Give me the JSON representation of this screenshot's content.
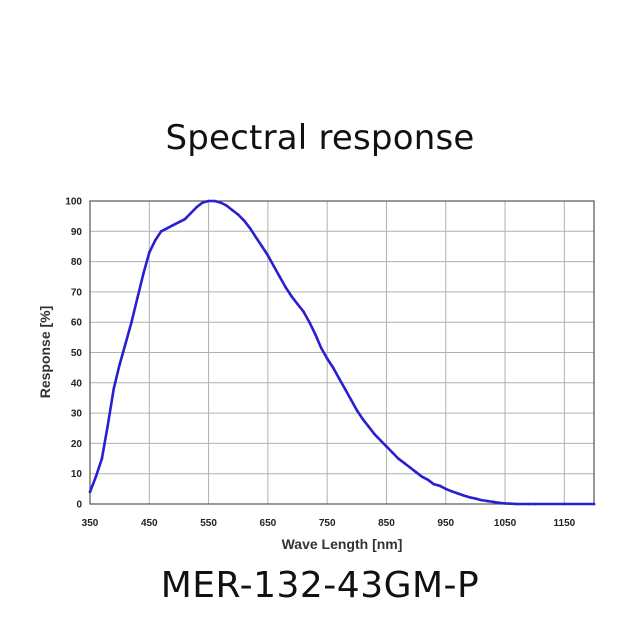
{
  "title": "Spectral response",
  "model": "MER-132-43GM-P",
  "colors": {
    "line": "#2a1fd0",
    "grid": "#b0b0b0",
    "axis": "#555555"
  },
  "chart_data": {
    "type": "line",
    "xlabel": "Wave Length [nm]",
    "ylabel": "Response [%]",
    "xlim": [
      350,
      1200
    ],
    "ylim": [
      0,
      100
    ],
    "x_ticks": [
      350,
      450,
      550,
      650,
      750,
      850,
      950,
      1050,
      1150
    ],
    "y_ticks": [
      0,
      10,
      20,
      30,
      40,
      50,
      60,
      70,
      80,
      90,
      100
    ],
    "grid": true,
    "series": [
      {
        "x": [
          350,
          360,
          370,
          380,
          390,
          400,
          410,
          420,
          430,
          440,
          450,
          460,
          470,
          480,
          490,
          500,
          510,
          520,
          530,
          540,
          550,
          560,
          570,
          580,
          590,
          600,
          610,
          620,
          630,
          640,
          650,
          660,
          670,
          680,
          690,
          700,
          710,
          720,
          730,
          740,
          750,
          760,
          770,
          780,
          790,
          800,
          810,
          820,
          830,
          840,
          850,
          860,
          870,
          880,
          890,
          900,
          910,
          920,
          930,
          940,
          950,
          960,
          970,
          980,
          990,
          1000,
          1010,
          1020,
          1030,
          1040,
          1050,
          1060,
          1070,
          1080,
          1090,
          1100,
          1150,
          1200
        ],
        "values": [
          4,
          9,
          15,
          26,
          38,
          46,
          53,
          60,
          68,
          76,
          83,
          87,
          90,
          91,
          92,
          93,
          94,
          96,
          98,
          99.5,
          100,
          100,
          99.5,
          98.5,
          97,
          95.5,
          93.5,
          91,
          88,
          85,
          82,
          78.5,
          75,
          71.5,
          68.5,
          66,
          63.5,
          60,
          56,
          51.5,
          48,
          45,
          41.5,
          38,
          34.5,
          31,
          28,
          25.5,
          23,
          21,
          19,
          17,
          15,
          13.5,
          12,
          10.5,
          9,
          8,
          6.5,
          6,
          5,
          4.2,
          3.5,
          2.8,
          2.2,
          1.8,
          1.3,
          1,
          0.7,
          0.4,
          0.2,
          0.1,
          0,
          0,
          0,
          0,
          0,
          0
        ]
      }
    ]
  }
}
